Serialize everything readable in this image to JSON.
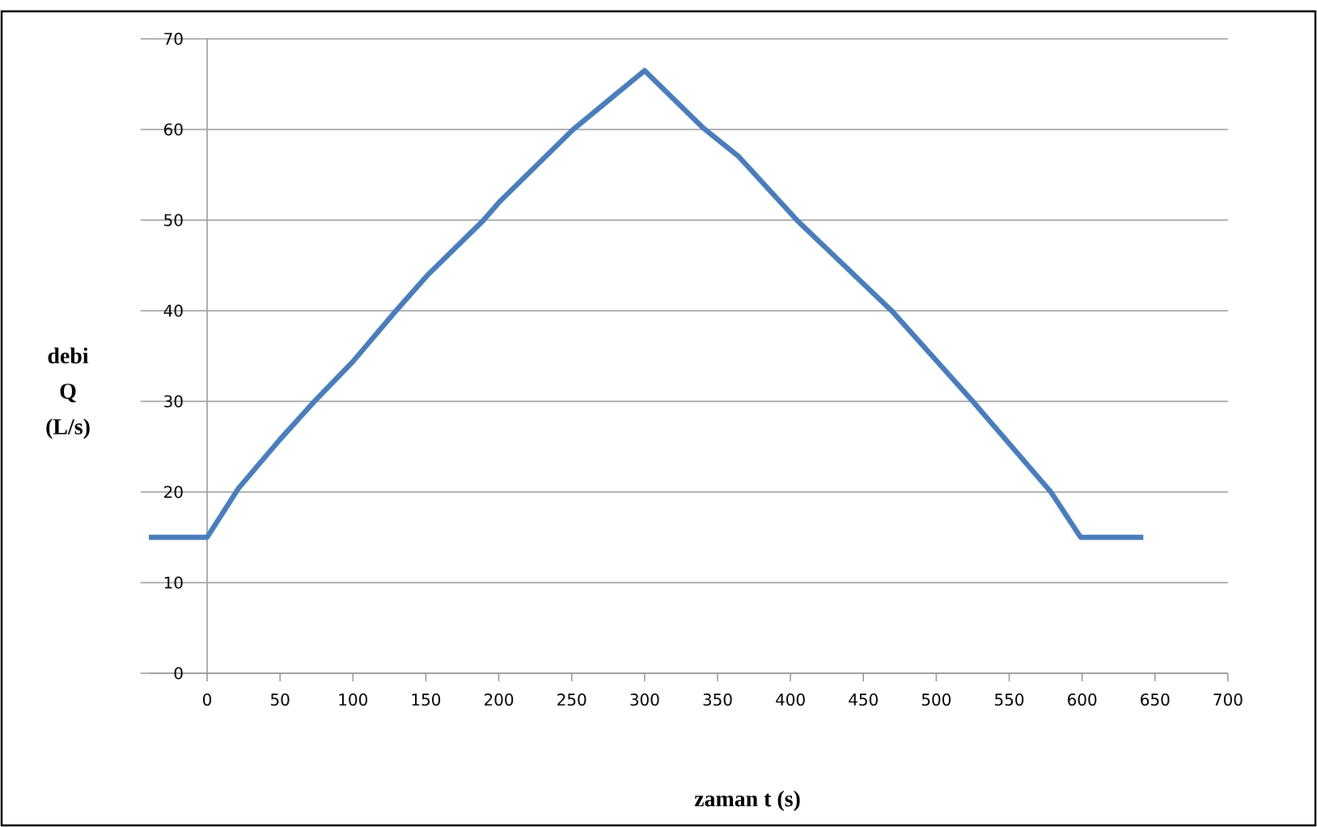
{
  "chart_data": {
    "type": "line",
    "xlabel": "zaman t (s)",
    "ylabel": "debi Q (L/s)",
    "x": [
      -40,
      0,
      21.5,
      50,
      73.6,
      100,
      129,
      151,
      189,
      201,
      251,
      300,
      340.6,
      364.6,
      405,
      470,
      525,
      578.6,
      599,
      642
    ],
    "series": [
      {
        "color": "#4a7ebb",
        "values": [
          15,
          15,
          20.4,
          25.8,
          30,
          34.4,
          39.9,
          43.9,
          49.9,
          52.1,
          60,
          66.5,
          60.1,
          57,
          49.9,
          39.9,
          30,
          20,
          15,
          15
        ]
      }
    ],
    "xlim": [
      -40,
      700
    ],
    "ylim": [
      0,
      70
    ],
    "xticks": [
      0,
      50,
      100,
      150,
      200,
      250,
      300,
      350,
      400,
      450,
      500,
      550,
      600,
      650,
      700
    ],
    "yticks": [
      0,
      10,
      20,
      30,
      40,
      50,
      60,
      70
    ],
    "grid": "y",
    "legend": false,
    "marker": "none",
    "line_style": "solid"
  }
}
